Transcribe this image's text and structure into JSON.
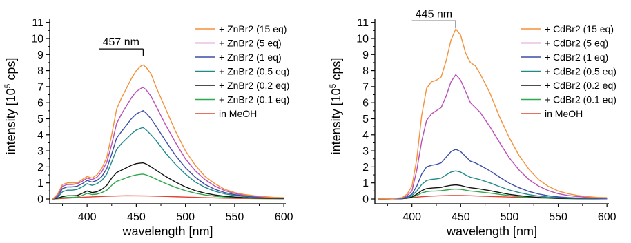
{
  "chart_data": [
    {
      "type": "line",
      "xlabel": "wavelength [nm]",
      "ylabel_prefix": "intensity [10",
      "ylabel_sup": "5",
      "ylabel_suffix": " cps]",
      "xlim": [
        362,
        602
      ],
      "ylim": [
        -0.3,
        11.2
      ],
      "xticks": [
        400,
        450,
        500,
        550,
        600
      ],
      "yticks": [
        0,
        1,
        2,
        3,
        4,
        5,
        6,
        7,
        8,
        9,
        10,
        11
      ],
      "grid": false,
      "legend_position": "top-right",
      "annotation": {
        "label": "457 nm",
        "x": 457,
        "bracket_from": 412,
        "y": 9.35
      },
      "series": [
        {
          "name": "+ ZnBr2 (15 eq)",
          "color": "#f5913a",
          "peak": 8.35,
          "peak_x": 457,
          "x": [
            365,
            370,
            375,
            380,
            385,
            390,
            395,
            400,
            405,
            410,
            415,
            420,
            425,
            430,
            435,
            440,
            445,
            450,
            455,
            457,
            460,
            465,
            470,
            480,
            490,
            500,
            510,
            520,
            530,
            540,
            550,
            560,
            570,
            580,
            590,
            600
          ],
          "y": [
            0,
            0.3,
            0.9,
            1.0,
            1.0,
            1.0,
            1.2,
            1.4,
            1.3,
            1.5,
            1.9,
            2.6,
            4.0,
            5.6,
            6.3,
            6.9,
            7.5,
            8.0,
            8.3,
            8.35,
            8.2,
            7.8,
            7.0,
            5.6,
            4.2,
            3.0,
            2.1,
            1.4,
            0.95,
            0.6,
            0.4,
            0.28,
            0.2,
            0.15,
            0.1,
            0.08
          ]
        },
        {
          "name": "+ ZnBr2 (5 eq)",
          "color": "#b94fb6",
          "peak": 6.95,
          "peak_x": 457,
          "x": [
            365,
            370,
            375,
            380,
            385,
            390,
            395,
            400,
            405,
            410,
            415,
            420,
            425,
            430,
            435,
            440,
            445,
            450,
            455,
            457,
            460,
            465,
            470,
            480,
            490,
            500,
            510,
            520,
            530,
            540,
            550,
            560,
            570,
            580,
            590,
            600
          ],
          "y": [
            0,
            0.2,
            0.8,
            0.9,
            0.9,
            0.95,
            1.1,
            1.3,
            1.2,
            1.35,
            1.7,
            2.3,
            3.4,
            4.7,
            5.3,
            5.8,
            6.3,
            6.7,
            6.9,
            6.95,
            6.8,
            6.4,
            5.8,
            4.6,
            3.5,
            2.5,
            1.75,
            1.2,
            0.8,
            0.52,
            0.35,
            0.24,
            0.17,
            0.12,
            0.09,
            0.07
          ]
        },
        {
          "name": "+ ZnBr2 (1 eq)",
          "color": "#3c4ea7",
          "peak": 5.5,
          "peak_x": 457,
          "x": [
            365,
            370,
            375,
            380,
            385,
            390,
            395,
            400,
            405,
            410,
            415,
            420,
            425,
            430,
            435,
            440,
            445,
            450,
            455,
            457,
            460,
            465,
            470,
            480,
            490,
            500,
            510,
            520,
            530,
            540,
            550,
            560,
            570,
            580,
            590,
            600
          ],
          "y": [
            0,
            0.15,
            0.65,
            0.75,
            0.75,
            0.8,
            0.95,
            1.15,
            1.05,
            1.15,
            1.4,
            1.9,
            2.8,
            3.8,
            4.2,
            4.6,
            5.0,
            5.3,
            5.45,
            5.5,
            5.35,
            5.0,
            4.55,
            3.6,
            2.7,
            1.95,
            1.35,
            0.9,
            0.6,
            0.4,
            0.27,
            0.19,
            0.13,
            0.1,
            0.07,
            0.06
          ]
        },
        {
          "name": "+ ZnBr2 (0.5 eq)",
          "color": "#1f8a8a",
          "peak": 4.45,
          "peak_x": 457,
          "x": [
            365,
            370,
            375,
            380,
            385,
            390,
            395,
            400,
            405,
            410,
            415,
            420,
            425,
            430,
            435,
            440,
            445,
            450,
            455,
            457,
            460,
            465,
            470,
            480,
            490,
            500,
            510,
            520,
            530,
            540,
            550,
            560,
            570,
            580,
            590,
            600
          ],
          "y": [
            0,
            0.1,
            0.45,
            0.55,
            0.55,
            0.6,
            0.75,
            0.95,
            0.85,
            0.95,
            1.15,
            1.55,
            2.3,
            3.1,
            3.45,
            3.75,
            4.05,
            4.3,
            4.42,
            4.45,
            4.3,
            4.0,
            3.65,
            2.85,
            2.15,
            1.55,
            1.05,
            0.72,
            0.48,
            0.32,
            0.22,
            0.15,
            0.1,
            0.08,
            0.06,
            0.05
          ]
        },
        {
          "name": "+ ZnBr2 (0.2 eq)",
          "color": "#111111",
          "peak": 2.25,
          "peak_x": 457,
          "x": [
            365,
            370,
            375,
            380,
            385,
            390,
            395,
            400,
            405,
            410,
            415,
            420,
            425,
            430,
            435,
            440,
            445,
            450,
            455,
            457,
            460,
            465,
            470,
            480,
            490,
            500,
            510,
            520,
            530,
            540,
            550,
            560,
            570,
            580,
            590,
            600
          ],
          "y": [
            0,
            0.05,
            0.15,
            0.2,
            0.2,
            0.22,
            0.35,
            0.5,
            0.4,
            0.45,
            0.6,
            0.85,
            1.3,
            1.65,
            1.8,
            1.95,
            2.1,
            2.2,
            2.24,
            2.25,
            2.18,
            2.0,
            1.8,
            1.4,
            1.05,
            0.75,
            0.52,
            0.36,
            0.25,
            0.17,
            0.12,
            0.08,
            0.06,
            0.05,
            0.04,
            0.03
          ]
        },
        {
          "name": "+ ZnBr2 (0.1 eq)",
          "color": "#2fa84a",
          "peak": 1.55,
          "peak_x": 457,
          "x": [
            365,
            370,
            375,
            380,
            385,
            390,
            395,
            400,
            405,
            410,
            415,
            420,
            425,
            430,
            435,
            440,
            445,
            450,
            455,
            457,
            460,
            465,
            470,
            480,
            490,
            500,
            510,
            520,
            530,
            540,
            550,
            560,
            570,
            580,
            590,
            600
          ],
          "y": [
            0,
            0.03,
            0.08,
            0.1,
            0.1,
            0.12,
            0.22,
            0.35,
            0.28,
            0.3,
            0.4,
            0.55,
            0.85,
            1.1,
            1.2,
            1.32,
            1.43,
            1.5,
            1.54,
            1.55,
            1.5,
            1.38,
            1.24,
            0.96,
            0.72,
            0.52,
            0.36,
            0.25,
            0.17,
            0.12,
            0.08,
            0.06,
            0.04,
            0.03,
            0.03,
            0.02
          ]
        },
        {
          "name": "in MeOH",
          "color": "#e0402e",
          "peak": 0.2,
          "peak_x": 440,
          "x": [
            365,
            380,
            400,
            420,
            440,
            460,
            480,
            500,
            520,
            540,
            560,
            580,
            600
          ],
          "y": [
            0,
            0.05,
            0.12,
            0.17,
            0.2,
            0.19,
            0.16,
            0.12,
            0.08,
            0.05,
            0.03,
            0.02,
            0.01
          ]
        }
      ]
    },
    {
      "type": "line",
      "xlabel": "wavelength [nm]",
      "ylabel_prefix": "intensity [10",
      "ylabel_sup": "5",
      "ylabel_suffix": " cps]",
      "xlim": [
        362,
        602
      ],
      "ylim": [
        -0.3,
        11.2
      ],
      "xticks": [
        400,
        450,
        500,
        550,
        600
      ],
      "yticks": [
        0,
        1,
        2,
        3,
        4,
        5,
        6,
        7,
        8,
        9,
        10,
        11
      ],
      "grid": false,
      "legend_position": "top-right",
      "annotation": {
        "label": "445 nm",
        "x": 445,
        "bracket_from": 400,
        "y": 11.1
      },
      "series": [
        {
          "name": "+ CdBr2 (15 eq)",
          "color": "#f5913a",
          "x": [
            365,
            380,
            390,
            395,
            400,
            405,
            410,
            415,
            420,
            425,
            430,
            435,
            440,
            445,
            450,
            455,
            460,
            465,
            470,
            480,
            490,
            500,
            510,
            520,
            530,
            540,
            550,
            560,
            570,
            580,
            590,
            600
          ],
          "y": [
            0,
            0.02,
            0.08,
            0.3,
            0.8,
            2.5,
            5.2,
            6.9,
            7.3,
            7.4,
            7.6,
            8.6,
            9.9,
            10.6,
            10.2,
            9.1,
            8.5,
            8.3,
            7.8,
            6.6,
            5.1,
            3.8,
            2.7,
            1.85,
            1.2,
            0.78,
            0.5,
            0.33,
            0.22,
            0.15,
            0.1,
            0.08
          ]
        },
        {
          "name": "+ CdBr2 (5 eq)",
          "color": "#b94fb6",
          "x": [
            365,
            380,
            390,
            395,
            400,
            405,
            410,
            415,
            420,
            425,
            430,
            435,
            440,
            445,
            450,
            455,
            460,
            465,
            470,
            480,
            490,
            500,
            510,
            520,
            530,
            540,
            550,
            560,
            570,
            580,
            590,
            600
          ],
          "y": [
            0,
            0.02,
            0.06,
            0.2,
            0.5,
            1.8,
            3.6,
            4.9,
            5.3,
            5.5,
            5.7,
            6.4,
            7.3,
            7.75,
            7.4,
            6.7,
            6.0,
            5.7,
            5.4,
            4.5,
            3.5,
            2.55,
            1.8,
            1.2,
            0.8,
            0.52,
            0.33,
            0.22,
            0.15,
            0.1,
            0.07,
            0.05
          ]
        },
        {
          "name": "+ CdBr2 (1 eq)",
          "color": "#3c4ea7",
          "x": [
            365,
            380,
            390,
            395,
            400,
            405,
            410,
            415,
            420,
            425,
            430,
            435,
            440,
            445,
            450,
            455,
            460,
            465,
            470,
            480,
            490,
            500,
            510,
            520,
            530,
            540,
            550,
            560,
            570,
            580,
            590,
            600
          ],
          "y": [
            0,
            0.01,
            0.04,
            0.12,
            0.3,
            0.8,
            1.55,
            2.0,
            2.1,
            2.15,
            2.25,
            2.6,
            2.95,
            3.1,
            2.95,
            2.65,
            2.35,
            2.25,
            2.1,
            1.75,
            1.35,
            0.98,
            0.7,
            0.47,
            0.31,
            0.2,
            0.13,
            0.09,
            0.06,
            0.04,
            0.03,
            0.02
          ]
        },
        {
          "name": "+ CdBr2 (0.5 eq)",
          "color": "#1f8a8a",
          "x": [
            365,
            380,
            390,
            395,
            400,
            405,
            410,
            415,
            420,
            425,
            430,
            435,
            440,
            445,
            450,
            455,
            460,
            465,
            470,
            480,
            490,
            500,
            510,
            520,
            530,
            540,
            550,
            560,
            570,
            580,
            590,
            600
          ],
          "y": [
            0,
            0.01,
            0.03,
            0.08,
            0.2,
            0.5,
            0.9,
            1.15,
            1.22,
            1.25,
            1.3,
            1.5,
            1.68,
            1.75,
            1.67,
            1.5,
            1.35,
            1.28,
            1.2,
            1.0,
            0.77,
            0.56,
            0.4,
            0.27,
            0.18,
            0.12,
            0.08,
            0.05,
            0.04,
            0.03,
            0.02,
            0.01
          ]
        },
        {
          "name": "+ CdBr2 (0.2 eq)",
          "color": "#111111",
          "x": [
            365,
            380,
            390,
            395,
            400,
            405,
            410,
            415,
            420,
            425,
            430,
            435,
            440,
            445,
            450,
            455,
            460,
            465,
            470,
            480,
            490,
            500,
            510,
            520,
            530,
            540,
            550,
            560,
            570,
            580,
            590,
            600
          ],
          "y": [
            0,
            0.01,
            0.02,
            0.06,
            0.12,
            0.3,
            0.52,
            0.65,
            0.68,
            0.7,
            0.72,
            0.8,
            0.85,
            0.88,
            0.84,
            0.76,
            0.7,
            0.66,
            0.62,
            0.52,
            0.4,
            0.29,
            0.21,
            0.14,
            0.1,
            0.06,
            0.04,
            0.03,
            0.02,
            0.02,
            0.01,
            0.01
          ]
        },
        {
          "name": "+ CdBr2 (0.1 eq)",
          "color": "#2fa84a",
          "x": [
            365,
            380,
            390,
            395,
            400,
            405,
            410,
            415,
            420,
            425,
            430,
            435,
            440,
            445,
            450,
            455,
            460,
            465,
            470,
            480,
            490,
            500,
            510,
            520,
            530,
            540,
            550,
            560,
            570,
            580,
            590,
            600
          ],
          "y": [
            0,
            0.01,
            0.02,
            0.05,
            0.1,
            0.22,
            0.38,
            0.46,
            0.49,
            0.5,
            0.52,
            0.56,
            0.6,
            0.62,
            0.6,
            0.55,
            0.5,
            0.47,
            0.44,
            0.37,
            0.29,
            0.21,
            0.15,
            0.1,
            0.07,
            0.05,
            0.03,
            0.02,
            0.02,
            0.01,
            0.01,
            0.01
          ]
        },
        {
          "name": "in MeOH",
          "color": "#e0402e",
          "x": [
            365,
            380,
            390,
            395,
            400,
            410,
            420,
            430,
            440,
            450,
            460,
            480,
            500,
            520,
            540,
            560,
            580,
            600
          ],
          "y": [
            0,
            0.01,
            0.02,
            0.04,
            0.08,
            0.14,
            0.18,
            0.2,
            0.22,
            0.22,
            0.2,
            0.16,
            0.12,
            0.08,
            0.05,
            0.03,
            0.02,
            0.01
          ]
        }
      ]
    }
  ]
}
